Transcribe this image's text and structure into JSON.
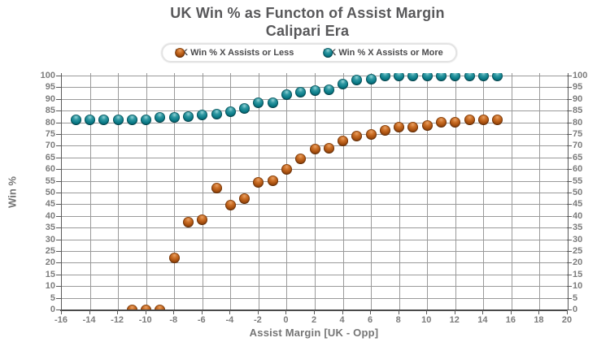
{
  "title": {
    "line1": "UK Win % as Functon of Assist Margin",
    "line2": "Calipari Era"
  },
  "legend": {
    "items": [
      {
        "label": "UK Win % X Assists or Less",
        "color": "#b25a19",
        "style": "orange"
      },
      {
        "label": "UK Win % X Assists or More",
        "color": "#0c7d8a",
        "style": "teal"
      }
    ]
  },
  "colors": {
    "title_text": "#58585a",
    "axis_text": "#7c7c7c",
    "gridline": "#9a9a9a",
    "axis_line": "#4a4a4a",
    "series_less": "#b25a19",
    "series_more": "#0c7d8a",
    "background": "#ffffff"
  },
  "chart_data": {
    "type": "scatter",
    "title": "UK Win % as Functon of Assist Margin",
    "subtitle": "Calipari Era",
    "xlabel": "Assist Margin [UK - Opp]",
    "ylabel": "Win %",
    "xlim": [
      -16,
      20
    ],
    "ylim": [
      0,
      100
    ],
    "xtick_step": 2,
    "ytick_step": 5,
    "grid": true,
    "legend_position": "top",
    "y_axis_labels_both_sides": true,
    "series": [
      {
        "name": "UK Win % X Assists or Less",
        "style": "orange",
        "color": "#b25a19",
        "x": [
          -11,
          -10,
          -9,
          -8,
          -7,
          -6,
          -5,
          -4,
          -3,
          -2,
          -1,
          0,
          1,
          2,
          3,
          4,
          5,
          6,
          7,
          8,
          9,
          10,
          11,
          12,
          13,
          14,
          15
        ],
        "y": [
          0,
          0,
          0,
          22,
          37.5,
          38.5,
          52,
          44.5,
          47.5,
          54.5,
          55,
          60,
          64.5,
          68.5,
          69,
          72,
          74,
          75,
          76.5,
          78,
          78,
          78.5,
          80,
          80,
          81,
          81,
          81
        ]
      },
      {
        "name": "UK Win % X Assists or More",
        "style": "teal",
        "color": "#0c7d8a",
        "x": [
          -15,
          -14,
          -13,
          -12,
          -11,
          -10,
          -9,
          -8,
          -7,
          -6,
          -5,
          -4,
          -3,
          -2,
          -1,
          0,
          1,
          2,
          3,
          4,
          5,
          6,
          7,
          8,
          9,
          10,
          11,
          12,
          13,
          14,
          15
        ],
        "y": [
          81,
          81,
          81,
          81,
          81,
          81,
          82,
          82,
          82.5,
          83,
          83.5,
          84.5,
          86,
          88.5,
          88.5,
          92,
          93,
          93.5,
          94,
          96.5,
          98,
          98.5,
          100,
          100,
          100,
          100,
          100,
          100,
          100,
          100,
          100
        ]
      }
    ]
  }
}
